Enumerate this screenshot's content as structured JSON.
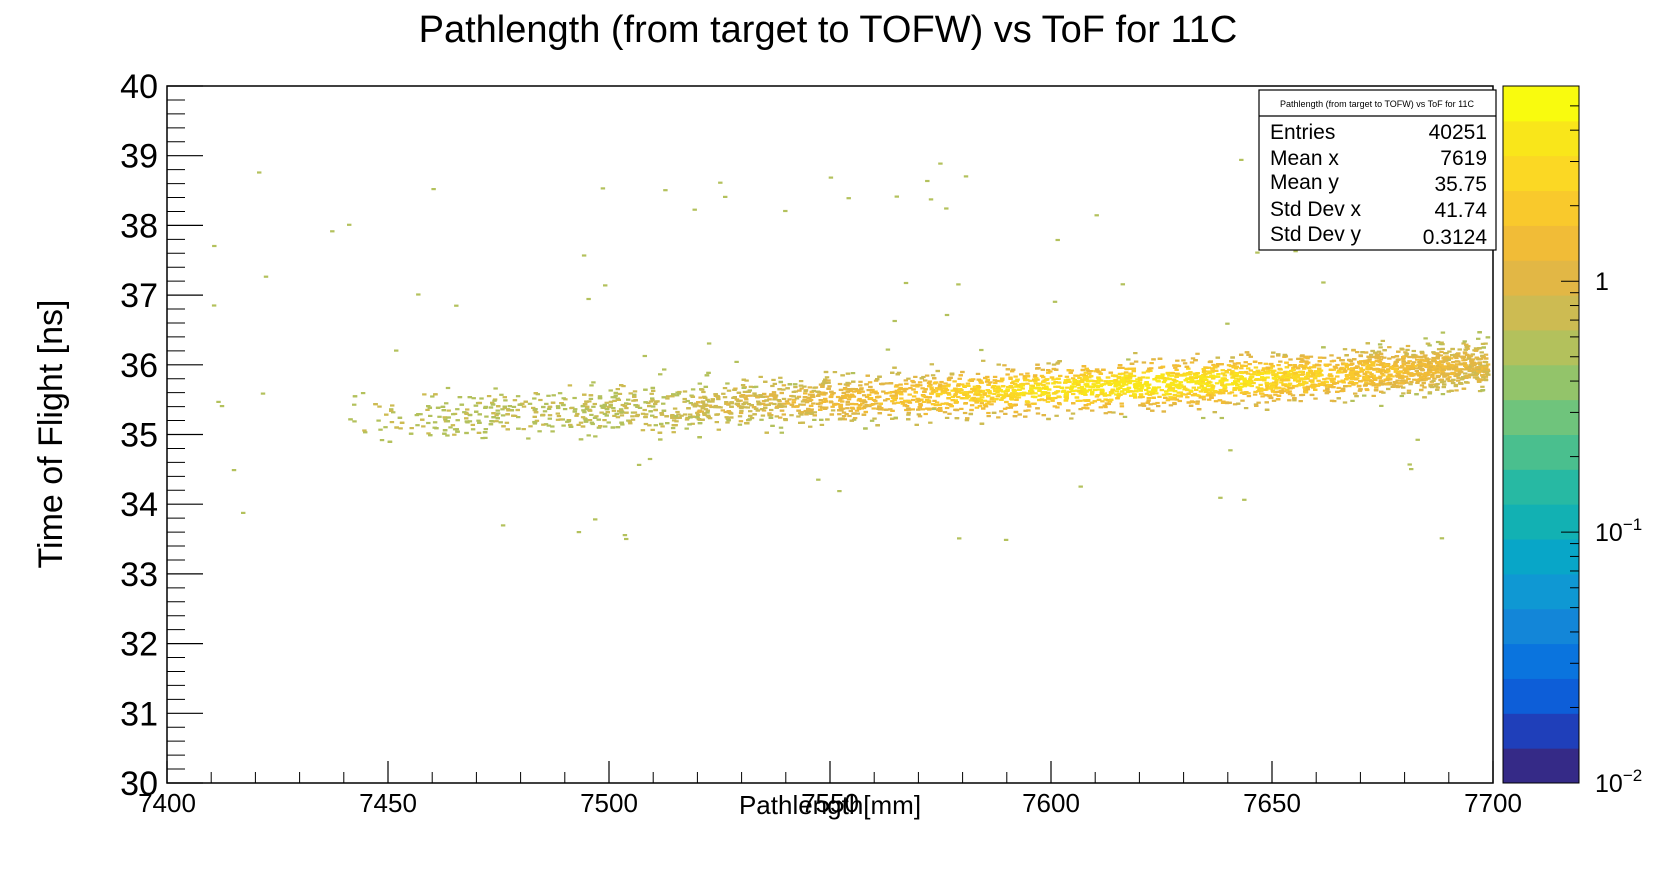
{
  "chart_data": {
    "type": "heatmap",
    "title": "Pathlength (from target to TOFW) vs ToF for 11C",
    "xlabel": "Pathlength[mm]",
    "ylabel": "Time of Flight [ns]",
    "xlim": [
      7400,
      7700
    ],
    "ylim": [
      30,
      40
    ],
    "x_ticks": [
      "7400",
      "7450",
      "7500",
      "7550",
      "7600",
      "7650",
      "7700"
    ],
    "y_ticks": [
      "30",
      "31",
      "32",
      "33",
      "34",
      "35",
      "36",
      "37",
      "38",
      "39",
      "40"
    ],
    "grid": false,
    "z_scale": "log",
    "colorbar": {
      "ticks": [
        {
          "base": "10",
          "exp": "−2",
          "value": 0.01
        },
        {
          "base": "10",
          "exp": "−1",
          "value": 0.1
        },
        {
          "base": "1",
          "exp": "",
          "value": 1
        }
      ],
      "zlim": [
        0.01,
        6
      ]
    },
    "band": {
      "description_points": [
        {
          "x": 7450,
          "y": 35.25
        },
        {
          "x": 7500,
          "y": 35.35
        },
        {
          "x": 7550,
          "y": 35.5
        },
        {
          "x": 7600,
          "y": 35.65
        },
        {
          "x": 7650,
          "y": 35.8
        },
        {
          "x": 7700,
          "y": 36.0
        }
      ],
      "y_spread": 0.3124
    },
    "stats_box": {
      "title": "Pathlength (from target to TOFW) vs ToF for 11C",
      "rows": [
        {
          "label": "Entries",
          "value": "40251"
        },
        {
          "label": "Mean x",
          "value": "7619"
        },
        {
          "label": "Mean y",
          "value": "35.75"
        },
        {
          "label": "Std Dev x",
          "value": "41.74"
        },
        {
          "label": "Std Dev y",
          "value": "0.3124"
        }
      ]
    },
    "palette": [
      "#352a87",
      "#1f3fba",
      "#0d5ed8",
      "#0a74de",
      "#1386d8",
      "#0f98d3",
      "#08a6c8",
      "#12b1b3",
      "#27b9a3",
      "#4abf8e",
      "#6fc47c",
      "#93c46a",
      "#b3c15c",
      "#cdbb52",
      "#e2b745",
      "#f1bc37",
      "#f9c92c",
      "#fbd824",
      "#f9e61a",
      "#f9fb0e"
    ]
  }
}
